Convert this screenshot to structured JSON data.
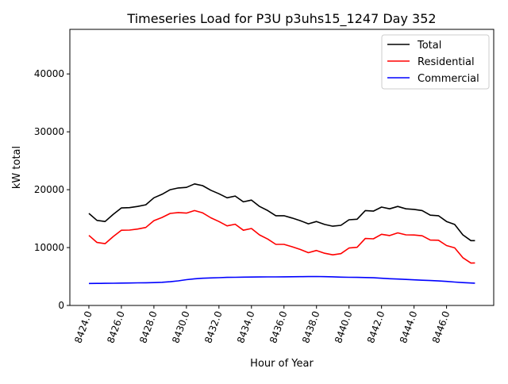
{
  "chart_data": {
    "type": "line",
    "title": "Timeseries Load for P3U p3uhs15_1247  Day 352",
    "xlabel": "Hour of Year",
    "ylabel": "kW total",
    "xlim": [
      8422.83,
      8448.9
    ],
    "ylim": [
      0,
      47700
    ],
    "grid": false,
    "legend_position": "top-right",
    "xticks": [
      8424,
      8426,
      8428,
      8430,
      8432,
      8434,
      8436,
      8438,
      8440,
      8442,
      8444,
      8446
    ],
    "xtick_labels": [
      "8424.0",
      "8426.0",
      "8428.0",
      "8430.0",
      "8432.0",
      "8434.0",
      "8436.0",
      "8438.0",
      "8440.0",
      "8442.0",
      "8444.0",
      "8446.0"
    ],
    "yticks": [
      0,
      10000,
      20000,
      30000,
      40000
    ],
    "ytick_labels": [
      "0",
      "10000",
      "20000",
      "30000",
      "40000"
    ],
    "x": [
      8424,
      8424.5,
      8425,
      8425.5,
      8426,
      8426.5,
      8427,
      8427.5,
      8428,
      8428.5,
      8429,
      8429.5,
      8430,
      8430.5,
      8431,
      8431.5,
      8432,
      8432.5,
      8433,
      8433.5,
      8434,
      8434.5,
      8435,
      8435.5,
      8436,
      8436.5,
      8437,
      8437.5,
      8438,
      8438.5,
      8439,
      8439.5,
      8440,
      8440.5,
      8441,
      8441.5,
      8442,
      8442.5,
      8443,
      8443.5,
      8444,
      8444.5,
      8445,
      8445.5,
      8446,
      8446.5,
      8447,
      8447.5,
      8447.75
    ],
    "series": [
      {
        "name": "Total",
        "color": "#000000",
        "values": [
          15900,
          14700,
          14500,
          15750,
          16850,
          16900,
          17100,
          17400,
          18600,
          19200,
          20000,
          20300,
          20400,
          21000,
          20700,
          19900,
          19300,
          18600,
          18900,
          17900,
          18200,
          17100,
          16400,
          15500,
          15500,
          15100,
          14650,
          14100,
          14500,
          14000,
          13700,
          13850,
          14800,
          14900,
          16400,
          16300,
          17000,
          16700,
          17100,
          16700,
          16600,
          16400,
          15600,
          15500,
          14500,
          14000,
          12200,
          11200,
          11200
        ]
      },
      {
        "name": "Residential",
        "color": "#ff0000",
        "values": [
          12100,
          10890,
          10680,
          11910,
          12990,
          13020,
          13200,
          13480,
          14650,
          15200,
          15900,
          16050,
          15950,
          16400,
          16000,
          15150,
          14500,
          13750,
          14030,
          13000,
          13290,
          12180,
          11470,
          10560,
          10550,
          10140,
          9680,
          9110,
          9500,
          9020,
          8750,
          8950,
          9930,
          10050,
          11570,
          11520,
          12300,
          12080,
          12540,
          12200,
          12170,
          12040,
          11300,
          11270,
          10350,
          9950,
          8250,
          7320,
          7350
        ]
      },
      {
        "name": "Commercial",
        "color": "#0000ff",
        "values": [
          3800,
          3810,
          3820,
          3840,
          3860,
          3880,
          3900,
          3920,
          3950,
          4000,
          4100,
          4250,
          4450,
          4600,
          4700,
          4750,
          4800,
          4850,
          4870,
          4900,
          4910,
          4920,
          4930,
          4940,
          4950,
          4960,
          4970,
          4990,
          5000,
          4980,
          4950,
          4900,
          4870,
          4850,
          4830,
          4780,
          4700,
          4620,
          4560,
          4500,
          4430,
          4360,
          4300,
          4230,
          4150,
          4050,
          3950,
          3880,
          3850
        ]
      }
    ]
  }
}
